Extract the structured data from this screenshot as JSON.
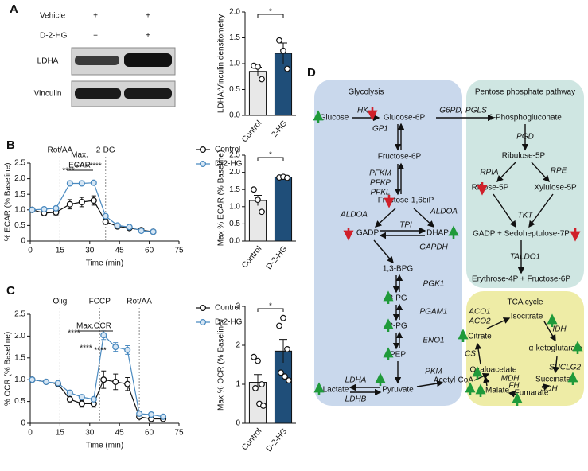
{
  "panel_labels": [
    "A",
    "B",
    "C",
    "D"
  ],
  "blot": {
    "rows": [
      "Vehicle",
      "D-2-HG"
    ],
    "marks": [
      [
        "+",
        "+"
      ],
      [
        "−",
        "+"
      ]
    ],
    "bands": [
      "LDHA",
      "Vinculin"
    ]
  },
  "chart_data": [
    {
      "type": "bar",
      "ylabel": "LDHA:Vinculin densitometry",
      "categories": [
        "Control",
        "2-HG"
      ],
      "values": [
        0.85,
        1.2
      ],
      "errors": [
        0.08,
        0.2
      ],
      "points": [
        [
          0.96,
          0.94,
          0.7
        ],
        [
          1.45,
          1.25,
          0.9
        ]
      ],
      "colors": [
        "#e8e8e8",
        "#1f4e79"
      ],
      "ylim": [
        0,
        2
      ],
      "yticks": [
        {
          "value": 0,
          "label": "0.0"
        },
        0.5,
        {
          "value": 1,
          "label": "1.0"
        },
        1.5,
        {
          "value": 2,
          "label": "2.0"
        }
      ],
      "significance": "*"
    },
    {
      "type": "line",
      "ylabel": "% ECAR (% Baseline)",
      "xlabel": "Time (min)",
      "x": [
        1,
        7,
        13,
        20,
        26,
        32,
        38,
        44,
        50,
        56,
        62
      ],
      "xlim": [
        0,
        75
      ],
      "xticks": [
        0,
        15,
        30,
        45,
        60,
        75
      ],
      "ylim": [
        0,
        2.5
      ],
      "yticks": [
        0,
        0.5,
        {
          "value": 1,
          "label": "1.0"
        },
        1.5,
        {
          "value": 2,
          "label": "2.0"
        },
        2.5
      ],
      "series": [
        {
          "name": "Control",
          "color": "#111111",
          "fill": "#ffffff",
          "values": [
            1.0,
            0.9,
            0.92,
            1.18,
            1.25,
            1.3,
            0.62,
            0.47,
            0.42,
            0.35,
            0.3
          ],
          "errors": [
            0.03,
            0.08,
            0.08,
            0.15,
            0.15,
            0.15,
            0.08,
            0.05,
            0.05,
            0.04,
            0.03
          ]
        },
        {
          "name": "D-2-HG",
          "color": "#4a8ac0",
          "fill": "#d6e6f4",
          "values": [
            1.0,
            1.02,
            1.05,
            1.85,
            1.85,
            1.87,
            0.8,
            0.5,
            0.45,
            0.33,
            0.3
          ],
          "errors": [
            0.02,
            0.03,
            0.03,
            0.05,
            0.04,
            0.03,
            0.05,
            0.04,
            0.03,
            0.03,
            0.02
          ]
        }
      ],
      "vlines": [
        {
          "x": 15,
          "label": "Rot/AA"
        },
        {
          "x": 38,
          "label": "2-DG"
        }
      ],
      "annotations": [
        "Max.",
        "ECAR",
        "****",
        "****",
        "****"
      ]
    },
    {
      "type": "bar",
      "ylabel": "Max % ECAR (% Baseline)",
      "categories": [
        "Control",
        "D-2-HG"
      ],
      "values": [
        1.18,
        1.86
      ],
      "errors": [
        0.15,
        0.02
      ],
      "points": [
        [
          1.5,
          1.2,
          0.85
        ],
        [
          1.85,
          1.87,
          1.84
        ]
      ],
      "colors": [
        "#e8e8e8",
        "#1f4e79"
      ],
      "ylim": [
        0,
        2.5
      ],
      "yticks": [
        {
          "value": 0,
          "label": "0.0"
        },
        0.5,
        {
          "value": 1,
          "label": "1.0"
        },
        1.5,
        {
          "value": 2,
          "label": "2.0"
        },
        2.5
      ],
      "significance": "*"
    },
    {
      "type": "line",
      "ylabel": "% OCR (% Baseline)",
      "xlabel": "Time (min)",
      "x": [
        1,
        8,
        14,
        20,
        26,
        32,
        37,
        43,
        49,
        55,
        61,
        67
      ],
      "xlim": [
        0,
        75
      ],
      "xticks": [
        0,
        15,
        30,
        45,
        60,
        75
      ],
      "ylim": [
        0,
        2.5
      ],
      "yticks": [
        0,
        0.5,
        {
          "value": 1,
          "label": "1.0"
        },
        1.5,
        {
          "value": 2,
          "label": "2.0"
        },
        2.5
      ],
      "series": [
        {
          "name": "Control",
          "color": "#111111",
          "fill": "#ffffff",
          "values": [
            1.0,
            0.95,
            0.9,
            0.55,
            0.45,
            0.45,
            1.0,
            0.95,
            0.9,
            0.15,
            0.1,
            0.1
          ],
          "errors": [
            0.02,
            0.03,
            0.04,
            0.06,
            0.08,
            0.08,
            0.2,
            0.18,
            0.15,
            0.05,
            0.03,
            0.03
          ]
        },
        {
          "name": "D-2-HG",
          "color": "#4a8ac0",
          "fill": "#d6e6f4",
          "values": [
            1.0,
            0.95,
            0.92,
            0.7,
            0.6,
            0.55,
            2.02,
            1.75,
            1.68,
            0.22,
            0.2,
            0.15
          ],
          "errors": [
            0.02,
            0.02,
            0.03,
            0.05,
            0.05,
            0.05,
            0.1,
            0.1,
            0.1,
            0.05,
            0.04,
            0.03
          ]
        }
      ],
      "vlines": [
        {
          "x": 15,
          "label": "Olig"
        },
        {
          "x": 35,
          "label": "FCCP"
        },
        {
          "x": 55,
          "label": "Rot/AA"
        }
      ],
      "annotations": [
        "Max.OCR",
        "****",
        "****",
        "****"
      ]
    },
    {
      "type": "bar",
      "ylabel": "Max % OCR (% Baseline)",
      "categories": [
        "Control",
        "D-2-HG"
      ],
      "values": [
        1.05,
        1.85
      ],
      "errors": [
        0.2,
        0.3
      ],
      "points": [
        [
          1.7,
          1.6,
          1.0,
          0.9,
          0.5,
          0.45
        ],
        [
          2.5,
          2.7,
          1.9,
          1.3,
          1.2,
          1.1
        ]
      ],
      "colors": [
        "#e8e8e8",
        "#1f4e79"
      ],
      "ylim": [
        0,
        3
      ],
      "yticks": [
        0,
        1,
        2,
        3
      ],
      "significance": "*"
    }
  ],
  "pathway": {
    "glycolysis": {
      "title": "Glycolysis",
      "metabolites": [
        "Glucose",
        "Glucose-6P",
        "Fructose-6P",
        "Fructose-1,6biP",
        "GADP",
        "DHAP",
        "1,3-BPG",
        "3-PG",
        "2-PG",
        "PEP",
        "Pyruvate",
        "Lactate",
        "Acetyl-CoA"
      ],
      "enzymes": [
        "HK",
        "GP1",
        "PFKM",
        "PFKP",
        "PFKL",
        "ALDOA",
        "ALDOA",
        "TPI",
        "GAPDH",
        "PGK1",
        "PGAM1",
        "ENO1",
        "PKM",
        "LDHA",
        "LDHB"
      ]
    },
    "ppp": {
      "title": "Pentose phosphate pathway",
      "metabolites": [
        "6-Phosphogluconate",
        "Ribulose-5P",
        "Ribose-5P",
        "Xylulose-5P",
        "GADP + Sedoheptulose-7P",
        "Erythrose-4P + Fructose-6P"
      ],
      "enzymes": [
        "G6PD, PGLS",
        "PGD",
        "RPIA",
        "RPE",
        "TKT",
        "TALDO1"
      ]
    },
    "tca": {
      "title": "TCA cycle",
      "metabolites": [
        "Isocitrate",
        "Citrate",
        "α-ketoglutarate",
        "Oxaloacetate",
        "Succinate",
        "Malate",
        "Fumarate"
      ],
      "enzymes": [
        "ACO1",
        "ACO2",
        "IDH",
        "CS",
        "MDH",
        "SUCLG2",
        "FH",
        "SDH"
      ]
    }
  }
}
